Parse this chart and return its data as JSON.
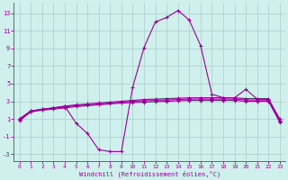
{
  "xlabel": "Windchill (Refroidissement éolien,°C)",
  "background_color": "#cff0ec",
  "grid_color": "#aacccc",
  "line_color": "#990099",
  "x": [
    0,
    1,
    2,
    3,
    4,
    5,
    6,
    7,
    8,
    9,
    10,
    11,
    12,
    13,
    14,
    15,
    16,
    17,
    18,
    19,
    20,
    21,
    22,
    23
  ],
  "curve_main": [
    1.0,
    1.9,
    2.1,
    2.25,
    2.45,
    0.5,
    -0.65,
    -2.5,
    -2.7,
    -2.7,
    4.6,
    9.1,
    12.0,
    12.5,
    13.3,
    12.2,
    9.3,
    3.8,
    3.4,
    3.4,
    4.35,
    3.25,
    3.2,
    1.0
  ],
  "line_top": [
    1.0,
    1.9,
    2.1,
    2.25,
    2.45,
    2.6,
    2.7,
    2.8,
    2.9,
    3.0,
    3.1,
    3.2,
    3.25,
    3.3,
    3.35,
    3.4,
    3.4,
    3.4,
    3.4,
    3.4,
    3.3,
    3.3,
    3.3,
    0.85
  ],
  "line_mid": [
    0.9,
    1.85,
    2.05,
    2.2,
    2.35,
    2.5,
    2.6,
    2.7,
    2.8,
    2.9,
    3.0,
    3.05,
    3.1,
    3.15,
    3.2,
    3.25,
    3.25,
    3.25,
    3.25,
    3.25,
    3.15,
    3.15,
    3.15,
    0.75
  ],
  "line_bot": [
    0.8,
    1.8,
    2.0,
    2.1,
    2.25,
    2.4,
    2.5,
    2.6,
    2.7,
    2.8,
    2.85,
    2.9,
    2.95,
    3.0,
    3.05,
    3.1,
    3.1,
    3.1,
    3.1,
    3.1,
    3.0,
    3.0,
    3.0,
    0.6
  ],
  "ylim": [
    -3.8,
    14.2
  ],
  "yticks": [
    -3,
    -1,
    1,
    3,
    5,
    7,
    9,
    11,
    13
  ],
  "xticks": [
    0,
    1,
    2,
    3,
    4,
    5,
    6,
    7,
    8,
    9,
    10,
    11,
    12,
    13,
    14,
    15,
    16,
    17,
    18,
    19,
    20,
    21,
    22,
    23
  ]
}
